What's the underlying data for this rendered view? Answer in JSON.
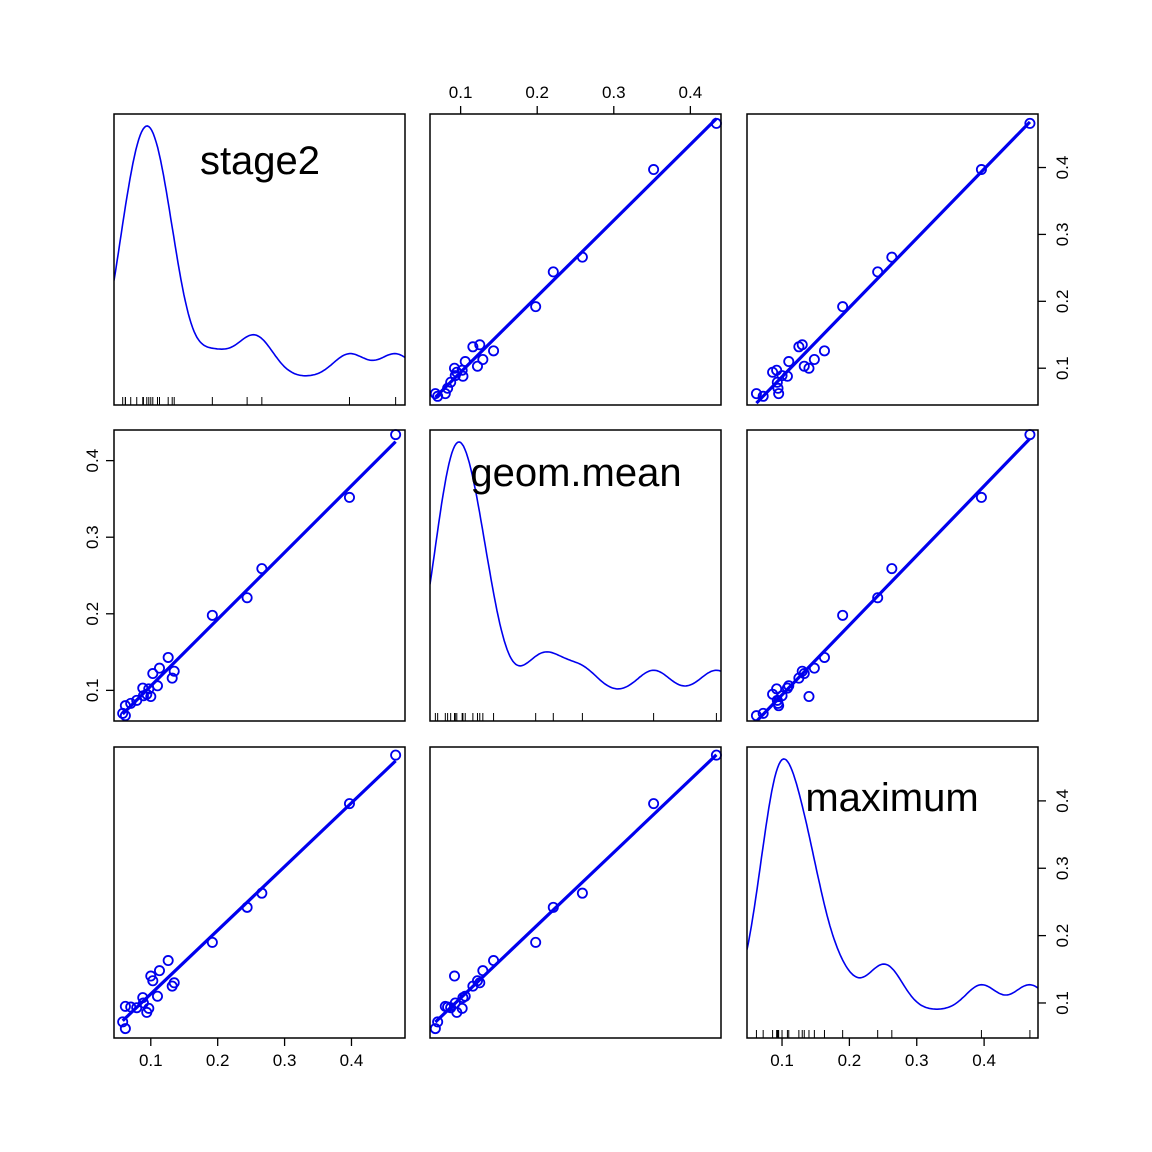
{
  "chart_data": {
    "type": "scatter",
    "subtype": "scatterplot-matrix",
    "variables": [
      "stage2",
      "geom.mean",
      "maximum"
    ],
    "color": "#0000ee",
    "rug_color": "#000000",
    "axis_ticks": {
      "stage2": [
        0.1,
        0.2,
        0.3,
        0.4
      ],
      "geom.mean": [
        0.1,
        0.2,
        0.3,
        0.4
      ],
      "maximum": [
        0.1,
        0.2,
        0.3,
        0.4
      ]
    },
    "axis_ranges": {
      "stage2": [
        0.045,
        0.48
      ],
      "geom.mean": [
        0.06,
        0.44
      ],
      "maximum": [
        0.048,
        0.48
      ]
    },
    "observations": {
      "stage2": [
        0.058,
        0.062,
        0.062,
        0.07,
        0.079,
        0.089,
        0.088,
        0.094,
        0.097,
        0.1,
        0.103,
        0.11,
        0.113,
        0.126,
        0.132,
        0.135,
        0.192,
        0.244,
        0.266,
        0.397,
        0.466
      ],
      "geom.mean": [
        0.07,
        0.08,
        0.067,
        0.083,
        0.087,
        0.093,
        0.103,
        0.095,
        0.102,
        0.092,
        0.122,
        0.106,
        0.129,
        0.143,
        0.116,
        0.125,
        0.198,
        0.221,
        0.259,
        0.352,
        0.434
      ],
      "maximum": [
        0.072,
        0.095,
        0.062,
        0.094,
        0.093,
        0.1,
        0.108,
        0.086,
        0.092,
        0.14,
        0.133,
        0.11,
        0.148,
        0.163,
        0.125,
        0.13,
        0.19,
        0.242,
        0.263,
        0.396,
        0.468
      ]
    },
    "density_peak_location": {
      "stage2": 0.095,
      "geom.mean": 0.105,
      "maximum": 0.108
    },
    "fit_lines": "least-squares",
    "legend": "none",
    "grid": false
  }
}
